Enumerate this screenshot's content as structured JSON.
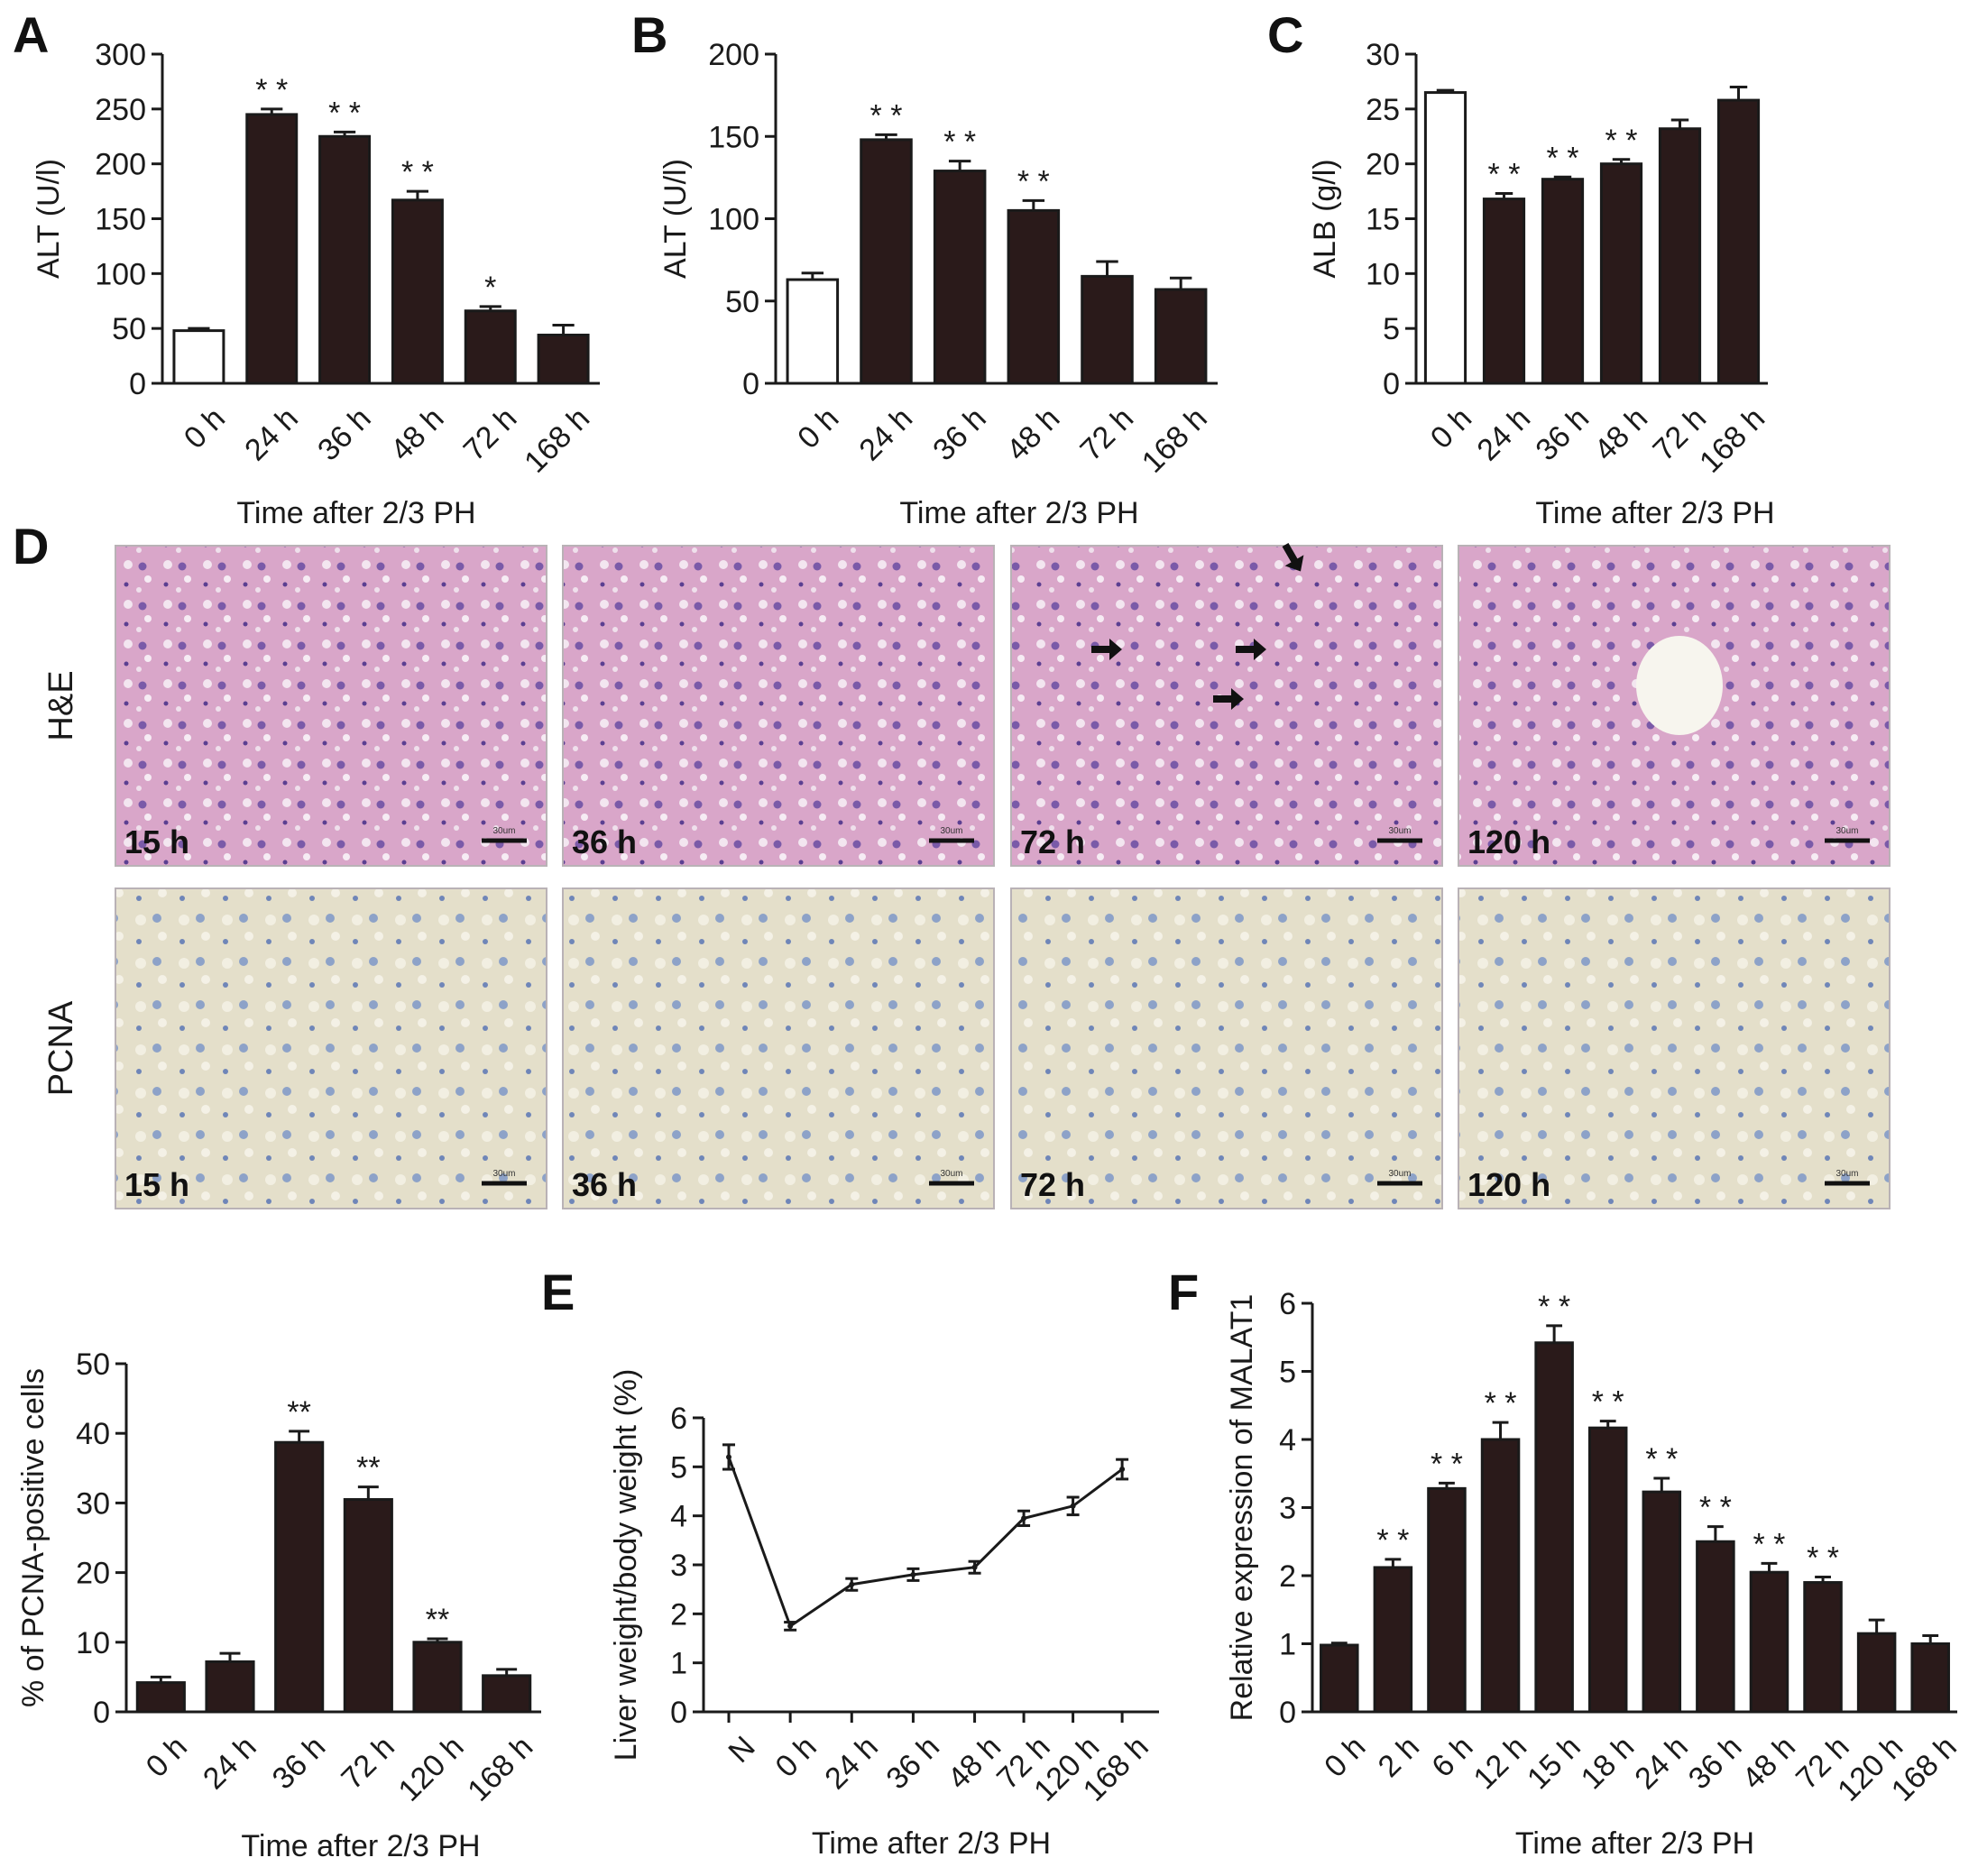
{
  "colors": {
    "bar_fill": "#2a1a1a",
    "bar_open": "#ffffff",
    "axis": "#1a1a1a"
  },
  "chart_data": [
    {
      "panel": "A",
      "type": "bar",
      "title": "",
      "categories": [
        "0 h",
        "24 h",
        "36 h",
        "48 h",
        "72 h",
        "168 h"
      ],
      "values": [
        48,
        245,
        225,
        167,
        66,
        44
      ],
      "errors": [
        2,
        5,
        4,
        8,
        4,
        9
      ],
      "fills": [
        "open",
        "dark",
        "dark",
        "dark",
        "dark",
        "dark"
      ],
      "significance": [
        "",
        "* *",
        "* *",
        "* *",
        "*",
        ""
      ],
      "ylabel": "ALT (U/l)",
      "xlabel": "Time after 2/3 PH",
      "ylim": [
        0,
        300
      ],
      "yticks": [
        0,
        50,
        100,
        150,
        200,
        250,
        300
      ]
    },
    {
      "panel": "B",
      "type": "bar",
      "title": "",
      "categories": [
        "0 h",
        "24 h",
        "36 h",
        "48 h",
        "72 h",
        "168 h"
      ],
      "values": [
        63,
        148,
        129,
        105,
        65,
        57
      ],
      "errors": [
        4,
        3,
        6,
        6,
        9,
        7
      ],
      "fills": [
        "open",
        "dark",
        "dark",
        "dark",
        "dark",
        "dark"
      ],
      "significance": [
        "",
        "* *",
        "* *",
        "* *",
        "",
        ""
      ],
      "ylabel": "ALT (U/l)",
      "xlabel": "Time after 2/3 PH",
      "ylim": [
        0,
        200
      ],
      "yticks": [
        0,
        50,
        100,
        150,
        200
      ]
    },
    {
      "panel": "C",
      "type": "bar",
      "title": "",
      "categories": [
        "0 h",
        "24 h",
        "36 h",
        "48 h",
        "72 h",
        "168 h"
      ],
      "values": [
        26.5,
        16.8,
        18.6,
        20.0,
        23.2,
        25.8
      ],
      "errors": [
        0.2,
        0.5,
        0.2,
        0.4,
        0.8,
        1.2
      ],
      "fills": [
        "open",
        "dark",
        "dark",
        "dark",
        "dark",
        "dark"
      ],
      "significance": [
        "",
        "* *",
        "* *",
        "* *",
        "",
        ""
      ],
      "ylabel": "ALB (g/l)",
      "xlabel": "Time after 2/3 PH",
      "ylim": [
        0,
        30
      ],
      "yticks": [
        0,
        5,
        10,
        15,
        20,
        25,
        30
      ]
    },
    {
      "panel": "D-quant",
      "type": "bar",
      "title": "",
      "categories": [
        "0 h",
        "24 h",
        "36 h",
        "72 h",
        "120 h",
        "168 h"
      ],
      "values": [
        4.2,
        7.2,
        38.7,
        30.5,
        10.0,
        5.2
      ],
      "errors": [
        0.8,
        1.2,
        1.6,
        1.8,
        0.5,
        0.9
      ],
      "fills": [
        "dark",
        "dark",
        "dark",
        "dark",
        "dark",
        "dark"
      ],
      "significance": [
        "",
        "",
        "**",
        "**",
        "**",
        ""
      ],
      "ylabel": "% of PCNA-positive cells",
      "xlabel": "Time after 2/3 PH",
      "ylim": [
        0,
        50
      ],
      "yticks": [
        0,
        10,
        20,
        30,
        40,
        50
      ]
    },
    {
      "panel": "E",
      "type": "line",
      "title": "",
      "categories": [
        "N",
        "0 h",
        "24 h",
        "36 h",
        "48 h",
        "72 h",
        "120 h",
        "168 h"
      ],
      "x_positions": [
        0,
        1,
        2,
        3,
        4,
        4.8,
        5.6,
        6.4
      ],
      "values": [
        5.2,
        1.75,
        2.6,
        2.8,
        2.95,
        3.95,
        4.2,
        4.95
      ],
      "errors": [
        0.25,
        0.08,
        0.12,
        0.12,
        0.12,
        0.15,
        0.18,
        0.2
      ],
      "significance": [],
      "ylabel": "Liver weight/body weight (%)",
      "xlabel": "Time after 2/3 PH",
      "ylim": [
        0,
        6
      ],
      "yticks": [
        0,
        1,
        2,
        3,
        4,
        5,
        6
      ]
    },
    {
      "panel": "F",
      "type": "bar",
      "title": "",
      "categories": [
        "0 h",
        "2 h",
        "6 h",
        "12 h",
        "15 h",
        "18 h",
        "24 h",
        "36 h",
        "48 h",
        "72 h",
        "120 h",
        "168 h"
      ],
      "values": [
        0.98,
        2.12,
        3.28,
        4.0,
        5.42,
        4.17,
        3.23,
        2.5,
        2.05,
        1.9,
        1.15,
        1.0
      ],
      "errors": [
        0.03,
        0.12,
        0.08,
        0.25,
        0.25,
        0.1,
        0.2,
        0.22,
        0.13,
        0.08,
        0.2,
        0.12
      ],
      "fills": [
        "dark",
        "dark",
        "dark",
        "dark",
        "dark",
        "dark",
        "dark",
        "dark",
        "dark",
        "dark",
        "dark",
        "dark"
      ],
      "significance": [
        "",
        "* *",
        "* *",
        "* *",
        "* *",
        "* *",
        "* *",
        "* *",
        "* *",
        "* *",
        "",
        ""
      ],
      "ylabel": "Relative expression of MALAT1",
      "xlabel": "Time after 2/3 PH",
      "ylim": [
        0,
        6
      ],
      "yticks": [
        0,
        1,
        2,
        3,
        4,
        5,
        6
      ]
    }
  ],
  "micrographs": {
    "panel": "D",
    "rows": [
      {
        "label": "H&E",
        "tone": "he"
      },
      {
        "label": "PCNA",
        "tone": "pcna"
      }
    ],
    "timepoints": [
      "15 h",
      "36 h",
      "72 h",
      "120 h"
    ],
    "scale_bar_text": "30um"
  }
}
